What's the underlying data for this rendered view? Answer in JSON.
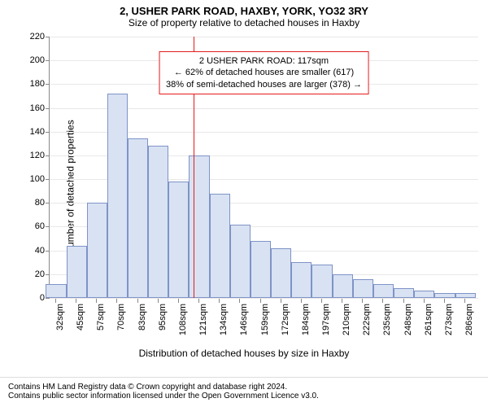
{
  "title": "2, USHER PARK ROAD, HAXBY, YORK, YO32 3RY",
  "subtitle": "Size of property relative to detached houses in Haxby",
  "y_label": "Number of detached properties",
  "x_label": "Distribution of detached houses by size in Haxby",
  "chart": {
    "type": "histogram",
    "ymax": 220,
    "y_ticks": [
      0,
      20,
      40,
      60,
      80,
      100,
      120,
      140,
      160,
      180,
      200,
      220
    ],
    "grid_color": "#e8e8e8",
    "bar_fill": "#d8e2f3",
    "bar_border": "#7f93c6",
    "marker_color": "#e51b1b",
    "marker_value": 117,
    "x_start": 28,
    "x_end": 293,
    "x_tick_step": 12.65,
    "x_tick_first_center": 32,
    "bars": [
      12,
      44,
      80,
      172,
      134,
      128,
      98,
      120,
      88,
      62,
      48,
      42,
      30,
      28,
      20,
      16,
      12,
      8,
      6,
      4,
      4
    ],
    "x_tick_labels": [
      "32sqm",
      "45sqm",
      "57sqm",
      "70sqm",
      "83sqm",
      "95sqm",
      "108sqm",
      "121sqm",
      "134sqm",
      "146sqm",
      "159sqm",
      "172sqm",
      "184sqm",
      "197sqm",
      "210sqm",
      "222sqm",
      "235sqm",
      "248sqm",
      "261sqm",
      "273sqm",
      "286sqm"
    ]
  },
  "annotation": {
    "line1": "2 USHER PARK ROAD: 117sqm",
    "line2": "← 62% of detached houses are smaller (617)",
    "line3": "38% of semi-detached houses are larger (378) →",
    "border_color": "#e51b1b"
  },
  "footer": {
    "line1": "Contains HM Land Registry data © Crown copyright and database right 2024.",
    "line2": "Contains public sector information licensed under the Open Government Licence v3.0."
  }
}
